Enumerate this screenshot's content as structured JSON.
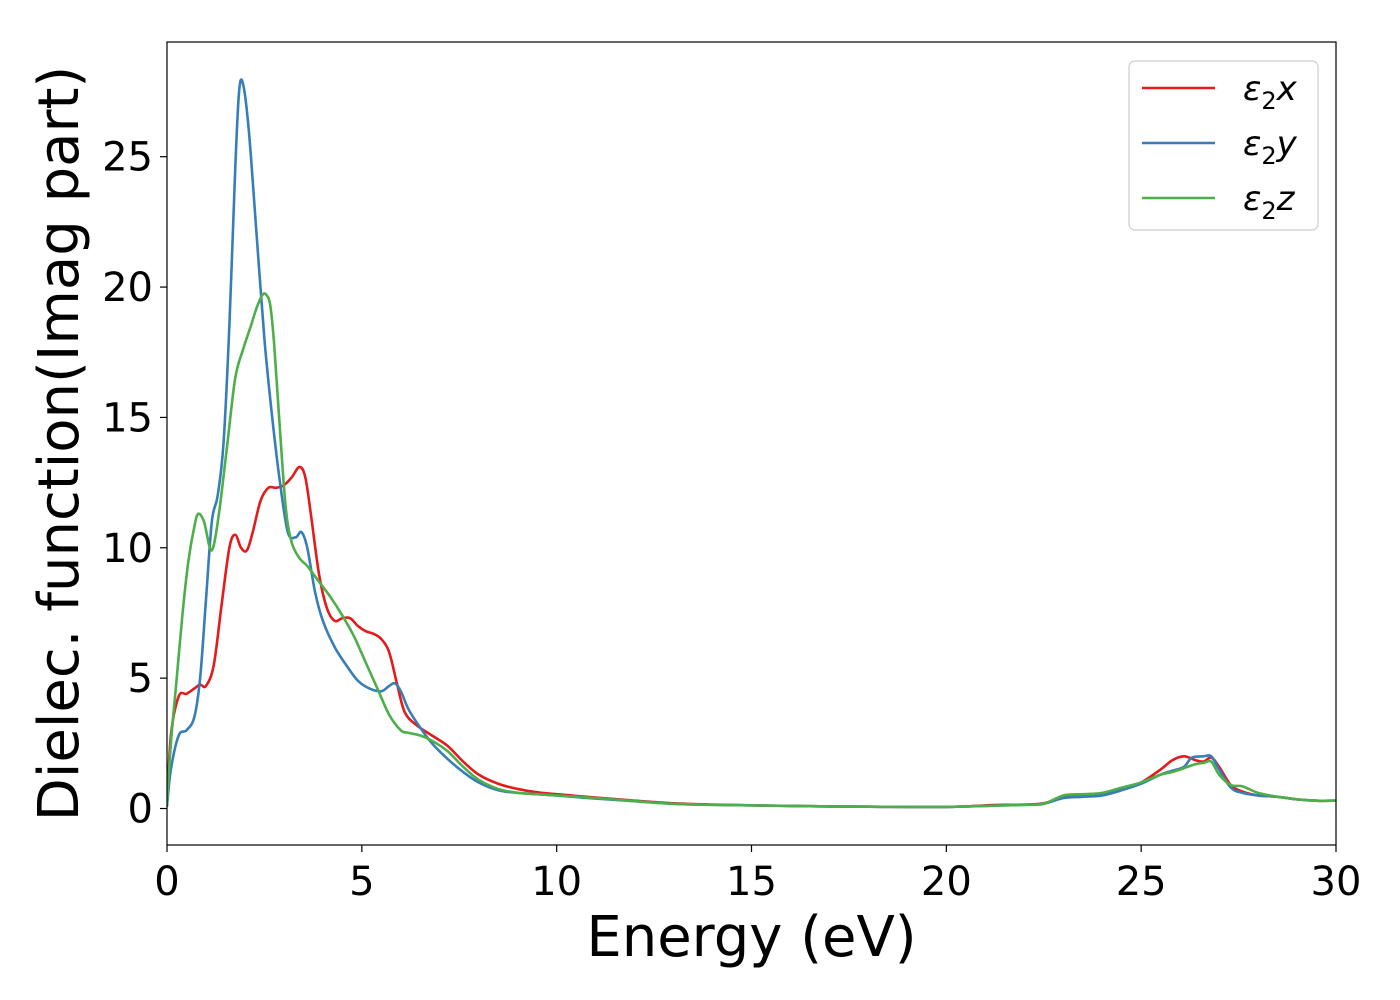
{
  "chart_data": {
    "type": "line",
    "title": "",
    "xlabel": "Energy (eV)",
    "ylabel": "Dielec. function(Imag part)",
    "xlim": [
      0,
      30
    ],
    "ylim": [
      -1.4,
      29.4
    ],
    "xticks": [
      0,
      5,
      10,
      15,
      20,
      25,
      30
    ],
    "yticks": [
      0,
      5,
      10,
      15,
      20,
      25
    ],
    "xtick_labels": [
      "0",
      "5",
      "10",
      "15",
      "20",
      "25",
      "30"
    ],
    "ytick_labels": [
      "0",
      "5",
      "10",
      "15",
      "20",
      "25"
    ],
    "grid": false,
    "legend_position": "top-right",
    "series": [
      {
        "name": "ε₂x",
        "legend_base": "ε",
        "legend_sub": "2",
        "legend_var": "x",
        "color": "#e41a1c",
        "x": [
          0,
          0.1,
          0.3,
          0.5,
          0.7,
          0.85,
          1.0,
          1.2,
          1.4,
          1.6,
          1.75,
          1.9,
          2.05,
          2.2,
          2.4,
          2.6,
          2.8,
          3.0,
          3.2,
          3.4,
          3.55,
          3.7,
          3.9,
          4.1,
          4.3,
          4.5,
          4.7,
          4.9,
          5.1,
          5.3,
          5.5,
          5.7,
          5.9,
          6.1,
          6.4,
          6.8,
          7.2,
          7.6,
          8.0,
          8.5,
          9.0,
          9.5,
          10,
          11,
          12,
          13,
          14,
          15,
          16,
          17,
          18,
          19,
          20,
          20.5,
          21,
          21.5,
          22,
          22.5,
          23,
          23.5,
          24,
          24.5,
          25,
          25.5,
          25.8,
          26.1,
          26.4,
          26.6,
          26.8,
          27,
          27.3,
          27.6,
          28,
          28.5,
          29,
          29.5,
          30
        ],
        "y": [
          0.1,
          2.8,
          4.3,
          4.4,
          4.6,
          4.75,
          4.7,
          5.5,
          7.8,
          10.0,
          10.5,
          10.0,
          9.9,
          10.6,
          11.8,
          12.3,
          12.3,
          12.4,
          12.7,
          13.1,
          12.7,
          11.2,
          9.0,
          7.7,
          7.2,
          7.3,
          7.3,
          7.0,
          6.8,
          6.7,
          6.5,
          6.0,
          4.8,
          3.7,
          3.2,
          2.8,
          2.4,
          1.8,
          1.3,
          0.95,
          0.75,
          0.62,
          0.55,
          0.42,
          0.3,
          0.2,
          0.15,
          0.12,
          0.1,
          0.08,
          0.07,
          0.06,
          0.06,
          0.08,
          0.12,
          0.14,
          0.15,
          0.2,
          0.45,
          0.5,
          0.55,
          0.75,
          1.0,
          1.5,
          1.85,
          2.0,
          1.85,
          1.8,
          1.95,
          1.6,
          0.9,
          0.65,
          0.5,
          0.45,
          0.35,
          0.3,
          0.3
        ]
      },
      {
        "name": "ε₂y",
        "legend_base": "ε",
        "legend_sub": "2",
        "legend_var": "y",
        "color": "#377eb8",
        "x": [
          0,
          0.1,
          0.3,
          0.5,
          0.7,
          0.85,
          1.0,
          1.15,
          1.3,
          1.45,
          1.6,
          1.75,
          1.85,
          1.95,
          2.1,
          2.3,
          2.5,
          2.7,
          2.9,
          3.1,
          3.3,
          3.45,
          3.6,
          3.8,
          4.0,
          4.3,
          4.6,
          4.9,
          5.2,
          5.5,
          5.7,
          5.85,
          6.0,
          6.2,
          6.5,
          6.8,
          7.2,
          7.6,
          8.0,
          8.5,
          9.0,
          9.5,
          10,
          11,
          12,
          13,
          14,
          15,
          16,
          17,
          18,
          19,
          20,
          20.5,
          21,
          21.5,
          22,
          22.5,
          23,
          23.5,
          24,
          24.5,
          25,
          25.5,
          25.8,
          26.1,
          26.3,
          26.6,
          26.8,
          27,
          27.3,
          27.6,
          28,
          28.5,
          29,
          29.5,
          30
        ],
        "y": [
          0.1,
          1.5,
          2.8,
          3.0,
          3.5,
          5.0,
          8.0,
          11.0,
          12.0,
          14.0,
          18.5,
          24.5,
          27.5,
          27.8,
          26.0,
          22.0,
          18.0,
          15.0,
          12.5,
          10.6,
          10.4,
          10.6,
          10.0,
          8.3,
          7.2,
          6.2,
          5.5,
          4.9,
          4.6,
          4.5,
          4.7,
          4.8,
          4.5,
          3.8,
          3.1,
          2.5,
          1.9,
          1.4,
          1.0,
          0.7,
          0.6,
          0.55,
          0.5,
          0.38,
          0.28,
          0.18,
          0.14,
          0.12,
          0.1,
          0.08,
          0.07,
          0.06,
          0.06,
          0.08,
          0.1,
          0.12,
          0.14,
          0.18,
          0.4,
          0.45,
          0.5,
          0.7,
          0.95,
          1.3,
          1.45,
          1.6,
          1.95,
          2.0,
          2.0,
          1.5,
          0.8,
          0.6,
          0.5,
          0.45,
          0.35,
          0.3,
          0.3
        ]
      },
      {
        "name": "ε₂z",
        "legend_base": "ε",
        "legend_sub": "2",
        "legend_var": "z",
        "color": "#4daf4a",
        "x": [
          0,
          0.1,
          0.25,
          0.4,
          0.55,
          0.7,
          0.8,
          0.95,
          1.1,
          1.2,
          1.35,
          1.55,
          1.75,
          1.95,
          2.15,
          2.3,
          2.45,
          2.55,
          2.65,
          2.75,
          2.9,
          3.05,
          3.2,
          3.4,
          3.6,
          3.9,
          4.2,
          4.5,
          4.8,
          5.1,
          5.4,
          5.7,
          6.0,
          6.2,
          6.5,
          6.8,
          7.2,
          7.6,
          8.0,
          8.5,
          9.0,
          9.5,
          10,
          11,
          12,
          13,
          14,
          15,
          16,
          17,
          18,
          19,
          20,
          20.5,
          21,
          21.5,
          22,
          22.5,
          23,
          23.5,
          24,
          24.5,
          25,
          25.5,
          25.8,
          26.1,
          26.4,
          26.6,
          26.8,
          27,
          27.3,
          27.6,
          28,
          28.5,
          29,
          29.5,
          30
        ],
        "y": [
          0.2,
          2.5,
          5.0,
          7.5,
          9.5,
          10.8,
          11.3,
          11.0,
          10.0,
          10.1,
          11.5,
          14.0,
          16.5,
          17.6,
          18.5,
          19.2,
          19.7,
          19.7,
          19.3,
          17.8,
          14.5,
          11.5,
          10.2,
          9.6,
          9.3,
          8.7,
          8.1,
          7.4,
          6.6,
          5.6,
          4.6,
          3.6,
          3.0,
          2.9,
          2.8,
          2.6,
          2.2,
          1.6,
          1.1,
          0.75,
          0.6,
          0.55,
          0.5,
          0.4,
          0.28,
          0.18,
          0.14,
          0.12,
          0.1,
          0.08,
          0.07,
          0.06,
          0.06,
          0.08,
          0.1,
          0.12,
          0.14,
          0.18,
          0.5,
          0.55,
          0.6,
          0.8,
          1.0,
          1.3,
          1.4,
          1.55,
          1.7,
          1.75,
          1.8,
          1.3,
          0.9,
          0.85,
          0.6,
          0.45,
          0.35,
          0.3,
          0.3
        ]
      }
    ]
  }
}
